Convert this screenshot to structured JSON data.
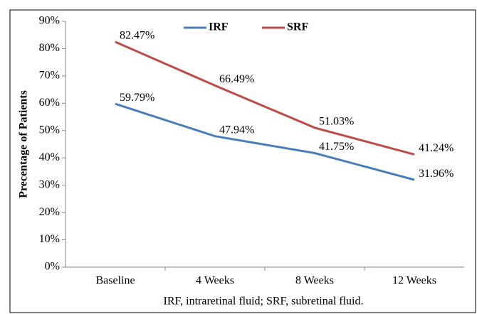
{
  "chart_data": {
    "type": "line",
    "ylabel": "Precentage of Patients",
    "caption": "IRF, intraretinal fluid; SRF, subretinal fluid.",
    "categories": [
      "Baseline",
      "4 Weeks",
      "8 Weeks",
      "12 Weeks"
    ],
    "series": [
      {
        "name": "IRF",
        "color": "#4a7ebb",
        "values": [
          59.79,
          47.94,
          41.75,
          31.96
        ],
        "value_labels": [
          "59.79%",
          "47.94%",
          "41.75%",
          "31.96%"
        ]
      },
      {
        "name": "SRF",
        "color": "#be4b48",
        "values": [
          82.47,
          66.49,
          51.03,
          41.24
        ],
        "value_labels": [
          "82.47%",
          "66.49%",
          "51.03%",
          "41.24%"
        ]
      }
    ],
    "ylim": [
      0,
      90
    ],
    "yticks": [
      {
        "value": 0,
        "label": "0%"
      },
      {
        "value": 10,
        "label": "10%"
      },
      {
        "value": 20,
        "label": "20%"
      },
      {
        "value": 30,
        "label": "30%"
      },
      {
        "value": 40,
        "label": "40%"
      },
      {
        "value": 50,
        "label": "50%"
      },
      {
        "value": 60,
        "label": "60%"
      },
      {
        "value": 70,
        "label": "70%"
      },
      {
        "value": 80,
        "label": "80%"
      },
      {
        "value": 90,
        "label": "90%"
      }
    ],
    "grid": false
  }
}
